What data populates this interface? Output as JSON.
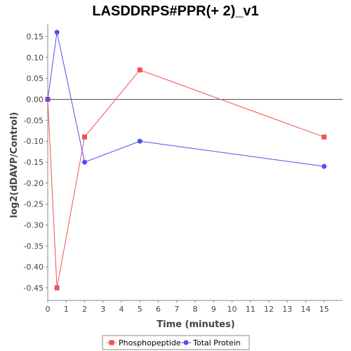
{
  "chart_data": {
    "type": "line",
    "title": "LASDDRPS#PPR(+ 2)_v1",
    "xlabel": "Time (minutes)",
    "ylabel": "log2(dDAVP/Control)",
    "xlim": [
      0,
      16
    ],
    "ylim": [
      -0.48,
      0.18
    ],
    "xticks": [
      0,
      1,
      2,
      3,
      4,
      5,
      6,
      7,
      8,
      9,
      10,
      11,
      12,
      13,
      14,
      15
    ],
    "xtick_labels": [
      "0",
      "1",
      "2",
      "3",
      "4",
      "5",
      "6",
      "7",
      "8",
      "9",
      "10",
      "11",
      "12",
      "13",
      "14",
      "15"
    ],
    "yticks": [
      0.15,
      0.1,
      0.05,
      0.0,
      -0.05,
      -0.1,
      -0.15,
      -0.2,
      -0.25,
      -0.3,
      -0.35,
      -0.4,
      -0.45
    ],
    "ytick_labels": [
      "0.15",
      "0.10",
      "0.05",
      "0.00",
      "-0.05",
      "-0.10",
      "-0.15",
      "-0.20",
      "-0.25",
      "-0.30",
      "-0.35",
      "-0.40",
      "-0.45"
    ],
    "zero_line": 0,
    "grid": false,
    "legend_position": "bottom",
    "series": [
      {
        "name": "Phosphopeptide",
        "color": "#f05050",
        "marker": "square",
        "x": [
          0,
          0.5,
          2,
          5,
          15
        ],
        "y": [
          0.0,
          -0.45,
          -0.09,
          0.07,
          -0.09
        ]
      },
      {
        "name": "Total Protein",
        "color": "#5050f0",
        "marker": "circle",
        "x": [
          0,
          0.5,
          2,
          5,
          15
        ],
        "y": [
          0.0,
          0.16,
          -0.15,
          -0.1,
          -0.16
        ]
      }
    ]
  }
}
